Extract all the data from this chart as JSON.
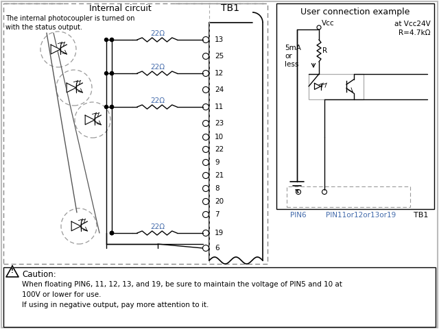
{
  "title": "Internal circuit",
  "tb1_label": "TB1",
  "user_conn_title": "User connection example",
  "user_conn_sub1": "at Vcc24V",
  "user_conn_sub2": "R=4.7kΩ",
  "vcc_label": "Vcc",
  "r_label": "R",
  "current_label1": "5mA",
  "current_label2": "or",
  "current_label3": "less",
  "pin6_label": "PIN6",
  "pin11_label": "PIN11or12or13or19",
  "tb1_pin_label": "TB1",
  "internal_desc1": "The internal photocoupler is turned on",
  "internal_desc2": "with the status output.",
  "caution_title": "Caution:",
  "caution_line1": "When floating PIN6, 11, 12, 13, and 19, be sure to maintain the voltage of PIN5 and 10 at",
  "caution_line2": "100V or lower for use.",
  "caution_line3": "If using in negative output, pay more attention to it.",
  "res_label": "22Ω",
  "bg_color": "#ffffff",
  "lc": "#000000",
  "gray": "#888888",
  "blue": "#4169aa",
  "dashed_gray": "#777777"
}
